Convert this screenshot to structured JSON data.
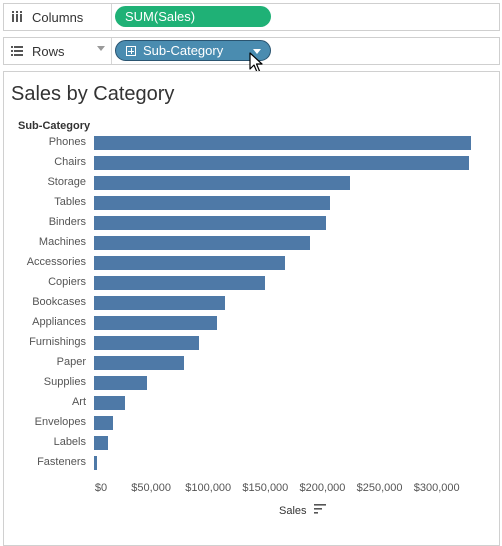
{
  "shelves": {
    "columns": {
      "label": "Columns",
      "icon": "columns-icon",
      "pill": "SUM(Sales)",
      "pill_color": "#1fb176"
    },
    "rows": {
      "label": "Rows",
      "icon": "rows-icon",
      "pill": "Sub-Category",
      "pill_color": "#4a8cb0"
    }
  },
  "chart_data": {
    "type": "bar",
    "orientation": "horizontal",
    "title": "Sales by Category",
    "row_header": "Sub-Category",
    "xlabel": "Sales",
    "xlim": [
      0,
      340000
    ],
    "x_ticks": [
      0,
      50000,
      100000,
      150000,
      200000,
      250000,
      300000
    ],
    "x_tick_labels": [
      "$0",
      "$50,000",
      "$100,000",
      "$150,000",
      "$200,000",
      "$250,000",
      "$300,000"
    ],
    "categories": [
      "Phones",
      "Chairs",
      "Storage",
      "Tables",
      "Binders",
      "Machines",
      "Accessories",
      "Copiers",
      "Bookcases",
      "Appliances",
      "Furnishings",
      "Paper",
      "Supplies",
      "Art",
      "Envelopes",
      "Labels",
      "Fasteners"
    ],
    "values": [
      330007,
      328449,
      223844,
      206966,
      203413,
      189239,
      167380,
      149528,
      114880,
      107532,
      91705,
      78479,
      46674,
      27119,
      16476,
      12486,
      3024
    ],
    "bar_color": "#4e79a7",
    "grid": false,
    "sort_icon": "sort-descending-icon"
  }
}
